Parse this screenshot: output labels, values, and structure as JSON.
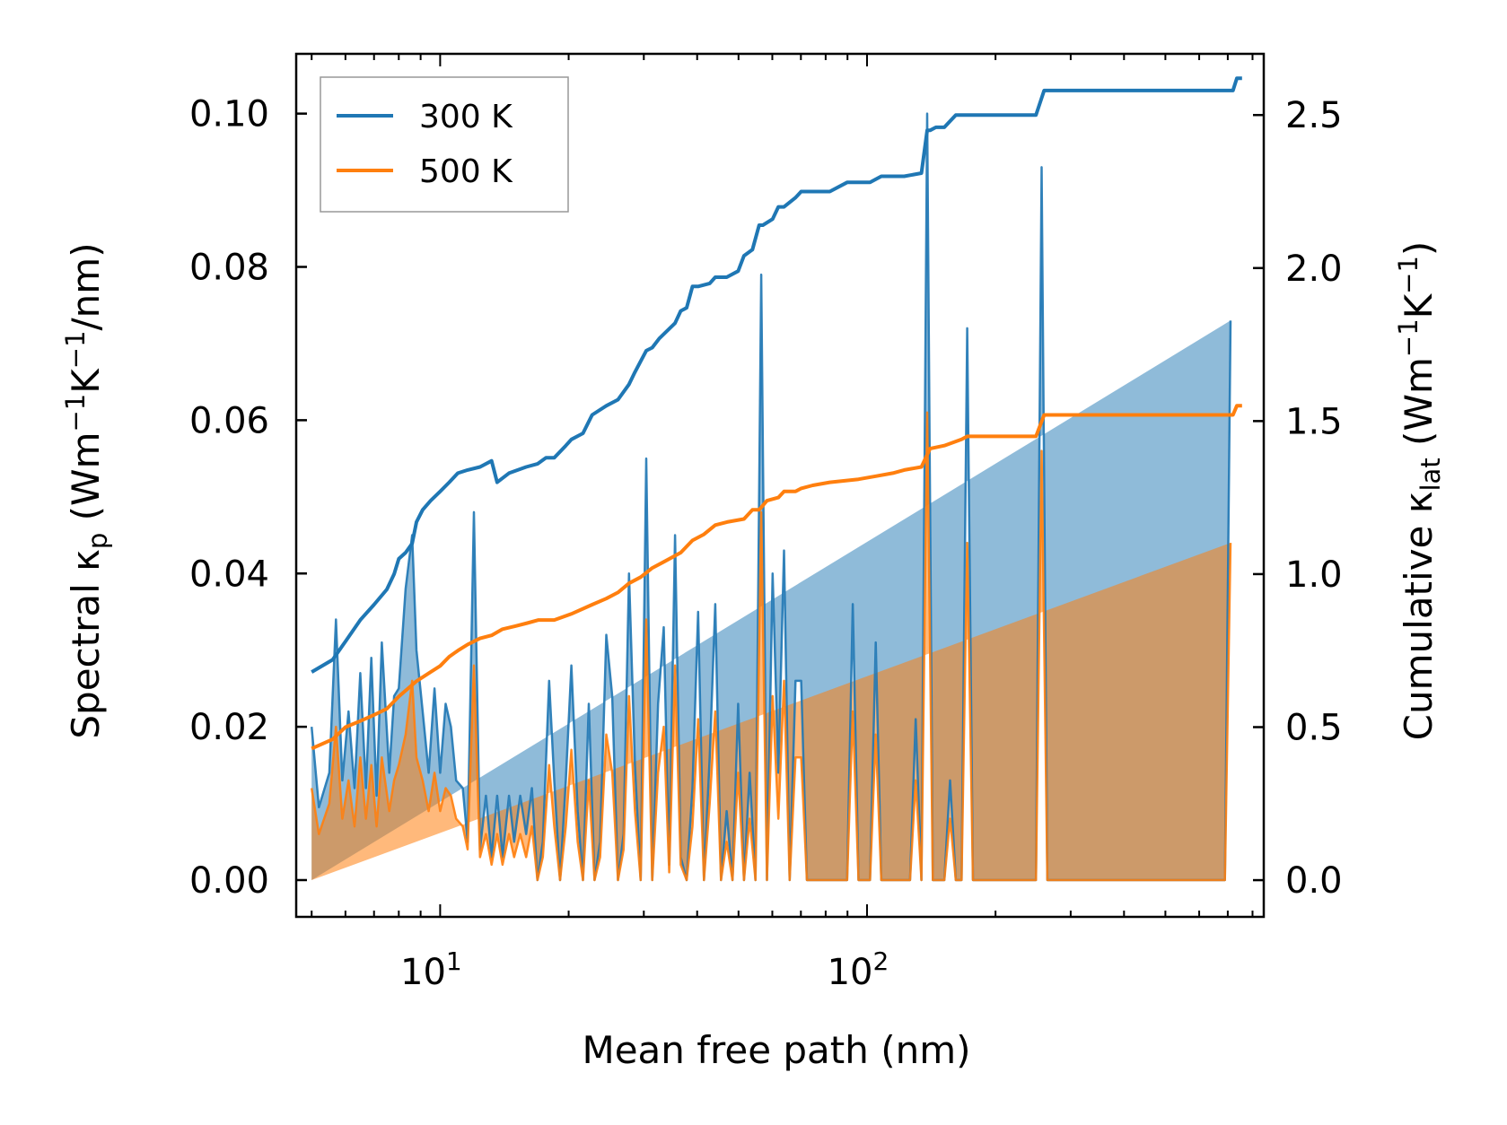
{
  "chart_data": {
    "type": "line",
    "xscale": "log",
    "xlim": [
      4.6,
      850
    ],
    "xlabel": "Mean free path (nm)",
    "xticks": [
      {
        "value": 10,
        "base": "10",
        "exp": "1"
      },
      {
        "value": 100,
        "base": "10",
        "exp": "2"
      }
    ],
    "ylabel": {
      "pre": "Spectral κ",
      "sub": "p",
      "mid": " (Wm",
      "sup1": "−1",
      "mid2": "K",
      "sup2": "−1",
      "post": "/nm)"
    },
    "ylim": [
      -0.0048,
      0.1078
    ],
    "yticks": [
      "0.00",
      "0.02",
      "0.04",
      "0.06",
      "0.08",
      "0.10"
    ],
    "y2label": {
      "pre": "Cumulative κ",
      "sub": "lat",
      "mid": " (Wm",
      "sup1": "−1",
      "mid2": "K",
      "sup2": "−1",
      "post": ")"
    },
    "y2lim": [
      -0.12,
      2.7
    ],
    "y2ticks": [
      "0.0",
      "0.5",
      "1.0",
      "1.5",
      "2.0",
      "2.5"
    ],
    "legend": {
      "position": "top-left",
      "entries": [
        {
          "name": "300 K",
          "color": "#1f77b4"
        },
        {
          "name": "500 K",
          "color": "#ff7f0e"
        }
      ]
    },
    "series": [
      {
        "name": "300 K",
        "color": "#1f77b4",
        "axis": "left",
        "kind": "spectral",
        "x": [
          5.0,
          5.2,
          5.5,
          5.7,
          5.9,
          6.1,
          6.3,
          6.5,
          6.7,
          6.9,
          7.1,
          7.3,
          7.6,
          7.8,
          8.0,
          8.3,
          8.6,
          8.8,
          9.1,
          9.4,
          9.7,
          10.0,
          10.3,
          10.6,
          10.9,
          11.3,
          11.6,
          12.0,
          12.4,
          12.8,
          13.2,
          13.6,
          14.0,
          14.5,
          14.9,
          15.4,
          15.9,
          16.4,
          16.9,
          17.4,
          18.0,
          18.5,
          19.1,
          19.7,
          20.3,
          21.0,
          21.6,
          22.3,
          23.0,
          23.7,
          24.5,
          25.3,
          26.1,
          26.9,
          27.7,
          28.6,
          29.5,
          30.4,
          31.4,
          32.4,
          33.4,
          34.4,
          35.5,
          36.6,
          37.8,
          39.0,
          40.2,
          41.5,
          42.8,
          44.1,
          45.5,
          46.9,
          48.4,
          49.9,
          51.5,
          53.1,
          54.8,
          56.5,
          58.3,
          60.1,
          62.0,
          63.9,
          65.9,
          68.0,
          70.1,
          72.3,
          74.6,
          76.9,
          79.3,
          81.8,
          84.4,
          87.0,
          89.8,
          92.6,
          95.5,
          98.5,
          101.6,
          104.8,
          108.0,
          111.4,
          114.9,
          118.5,
          122.2,
          126.1,
          130.0,
          134.1,
          138.3,
          142.6,
          147.1,
          151.7,
          156.5,
          161.4,
          166.5,
          171.7,
          177.1,
          182.6,
          188.3,
          194.2,
          200.3,
          206.6,
          213.1,
          219.8,
          226.7,
          233.8,
          241.1,
          248.7,
          256.5,
          264.5,
          272.8,
          281.4,
          290.2,
          299.3,
          308.7,
          318.4,
          328.4,
          338.7,
          349.3,
          360.3,
          371.6,
          383.2,
          395.2,
          407.6,
          420.4,
          433.6,
          447.2,
          461.2,
          475.6,
          490.6,
          506.0,
          521.9,
          538.2,
          555.1,
          572.5,
          590.5,
          609.0,
          628.1,
          647.8,
          668.1,
          689.1,
          710.7,
          733.0,
          756.0,
          780.0
        ],
        "spectral": [
          0.02,
          0.0095,
          0.014,
          0.034,
          0.013,
          0.022,
          0.012,
          0.027,
          0.012,
          0.029,
          0.011,
          0.031,
          0.014,
          0.024,
          0.025,
          0.038,
          0.045,
          0.03,
          0.022,
          0.014,
          0.025,
          0.014,
          0.023,
          0.02,
          0.013,
          0.012,
          0.005,
          0.048,
          0.004,
          0.011,
          0.003,
          0.011,
          0.003,
          0.011,
          0.005,
          0.011,
          0.006,
          0.012,
          0.0,
          0.005,
          0.026,
          0.013,
          0.0,
          0.013,
          0.028,
          0.009,
          0.0,
          0.023,
          0.0,
          0.005,
          0.032,
          0.024,
          0.0,
          0.006,
          0.04,
          0.015,
          0.0,
          0.055,
          0.0,
          0.023,
          0.033,
          0.002,
          0.045,
          0.003,
          0.0,
          0.012,
          0.035,
          0.0,
          0.016,
          0.036,
          0.0,
          0.009,
          0.0,
          0.023,
          0.0,
          0.014,
          0.0,
          0.079,
          0.0,
          0.04,
          0.014,
          0.043,
          0.0,
          0.026,
          0.026,
          0.0,
          0.0,
          0.0,
          0.0,
          0.0,
          0.0,
          0.0,
          0.0,
          0.036,
          0.0,
          0.0,
          0.0,
          0.031,
          0.0,
          0.0,
          0.0,
          0.0,
          0.0,
          0.0,
          0.021,
          0.0,
          0.1,
          0.0,
          0.0,
          0.0,
          0.013,
          0.0,
          0.0,
          0.072,
          0.0,
          0.0,
          0.0,
          0.0,
          0.0,
          0.0,
          0.0,
          0.0,
          0.0,
          0.0,
          0.0,
          0.0,
          0.093,
          0.0,
          0.0,
          0.0,
          0.0,
          0.0,
          0.0,
          0.0,
          0.0,
          0.0,
          0.0,
          0.0,
          0.0,
          0.0,
          0.0,
          0.0,
          0.0,
          0.0,
          0.0,
          0.0,
          0.0,
          0.0,
          0.0,
          0.0,
          0.0,
          0.0,
          0.0,
          0.0,
          0.0,
          0.0,
          0.0,
          0.0,
          0.0,
          0.073
        ],
        "cumulative_x": [
          5.0,
          5.6,
          6.0,
          6.5,
          7.0,
          7.5,
          7.8,
          8.0,
          8.3,
          8.6,
          8.8,
          9.1,
          9.5,
          10.0,
          10.5,
          11.0,
          11.6,
          12.4,
          13.2,
          13.6,
          14.5,
          15.9,
          16.9,
          17.7,
          18.5,
          19.7,
          20.3,
          21.6,
          22.7,
          24.5,
          26.1,
          27.7,
          28.6,
          30.4,
          31.4,
          32.6,
          35.5,
          36.6,
          37.8,
          39.0,
          40.2,
          42.8,
          44.1,
          46.9,
          49.9,
          51.5,
          53.9,
          55.9,
          57.0,
          60.1,
          62.0,
          63.9,
          68.0,
          70.1,
          74.6,
          81.8,
          89.8,
          95.5,
          101.6,
          108.0,
          122.2,
          134.1,
          138.3,
          140.5,
          145.0,
          151.7,
          161.4,
          166.5,
          171.7,
          248.7,
          260.0,
          720.0,
          735.0,
          756.0
        ],
        "cumulative": [
          0.68,
          0.72,
          0.78,
          0.85,
          0.9,
          0.95,
          1.0,
          1.05,
          1.07,
          1.1,
          1.17,
          1.21,
          1.24,
          1.27,
          1.3,
          1.33,
          1.34,
          1.35,
          1.37,
          1.3,
          1.33,
          1.35,
          1.36,
          1.38,
          1.38,
          1.42,
          1.44,
          1.46,
          1.52,
          1.55,
          1.57,
          1.62,
          1.66,
          1.73,
          1.74,
          1.77,
          1.82,
          1.86,
          1.87,
          1.94,
          1.94,
          1.95,
          1.97,
          1.97,
          1.99,
          2.04,
          2.06,
          2.14,
          2.14,
          2.16,
          2.2,
          2.2,
          2.23,
          2.25,
          2.25,
          2.25,
          2.28,
          2.28,
          2.28,
          2.3,
          2.3,
          2.31,
          2.45,
          2.45,
          2.46,
          2.46,
          2.5,
          2.5,
          2.5,
          2.5,
          2.58,
          2.58,
          2.62,
          2.62
        ]
      },
      {
        "name": "500 K",
        "color": "#ff7f0e",
        "axis": "left",
        "kind": "spectral",
        "x": [
          5.0,
          5.2,
          5.5,
          5.7,
          5.9,
          6.1,
          6.3,
          6.5,
          6.7,
          6.9,
          7.1,
          7.3,
          7.6,
          7.8,
          8.0,
          8.3,
          8.6,
          8.8,
          9.1,
          9.4,
          9.7,
          10.0,
          10.3,
          10.6,
          10.9,
          11.3,
          11.6,
          12.0,
          12.4,
          12.8,
          13.2,
          13.6,
          14.0,
          14.5,
          14.9,
          15.4,
          15.9,
          16.4,
          16.9,
          17.4,
          18.0,
          18.5,
          19.1,
          19.7,
          20.3,
          21.0,
          21.6,
          22.3,
          23.0,
          23.7,
          24.5,
          25.3,
          26.1,
          26.9,
          27.7,
          28.6,
          29.5,
          30.4,
          31.4,
          32.4,
          33.4,
          34.4,
          35.5,
          36.6,
          37.8,
          39.0,
          40.2,
          41.5,
          42.8,
          44.1,
          45.5,
          46.9,
          48.4,
          49.9,
          51.5,
          53.1,
          54.8,
          56.5,
          58.3,
          60.1,
          62.0,
          63.9,
          65.9,
          68.0,
          70.1,
          72.3,
          74.6,
          76.9,
          79.3,
          81.8,
          84.4,
          87.0,
          89.8,
          92.6,
          95.5,
          98.5,
          101.6,
          104.8,
          108.0,
          111.4,
          114.9,
          118.5,
          122.2,
          126.1,
          130.0,
          134.1,
          138.3,
          142.6,
          147.1,
          151.7,
          156.5,
          161.4,
          166.5,
          171.7,
          177.1,
          182.6,
          188.3,
          194.2,
          200.3,
          206.6,
          213.1,
          219.8,
          226.7,
          233.8,
          241.1,
          248.7,
          256.5,
          264.5,
          272.8,
          281.4,
          290.2,
          299.3,
          308.7,
          318.4,
          328.4,
          338.7,
          349.3,
          360.3,
          371.6,
          383.2,
          395.2,
          407.6,
          420.4,
          433.6,
          447.2,
          461.2,
          475.6,
          490.6,
          506.0,
          521.9,
          538.2,
          555.1,
          572.5,
          590.5,
          609.0,
          628.1,
          647.8,
          668.1,
          689.1,
          710.7,
          733.0,
          756.0,
          780.0
        ],
        "spectral": [
          0.012,
          0.006,
          0.01,
          0.02,
          0.008,
          0.013,
          0.007,
          0.016,
          0.008,
          0.015,
          0.007,
          0.016,
          0.009,
          0.013,
          0.015,
          0.019,
          0.026,
          0.016,
          0.013,
          0.009,
          0.014,
          0.009,
          0.012,
          0.011,
          0.008,
          0.007,
          0.004,
          0.028,
          0.003,
          0.006,
          0.002,
          0.006,
          0.002,
          0.006,
          0.003,
          0.006,
          0.003,
          0.007,
          0.0,
          0.003,
          0.015,
          0.007,
          0.0,
          0.007,
          0.017,
          0.005,
          0.0,
          0.013,
          0.0,
          0.003,
          0.019,
          0.014,
          0.0,
          0.004,
          0.024,
          0.009,
          0.0,
          0.034,
          0.0,
          0.014,
          0.02,
          0.001,
          0.028,
          0.002,
          0.0,
          0.007,
          0.021,
          0.0,
          0.01,
          0.022,
          0.0,
          0.005,
          0.0,
          0.014,
          0.0,
          0.008,
          0.0,
          0.048,
          0.0,
          0.024,
          0.008,
          0.026,
          0.0,
          0.016,
          0.016,
          0.0,
          0.0,
          0.0,
          0.0,
          0.0,
          0.0,
          0.0,
          0.0,
          0.022,
          0.0,
          0.0,
          0.0,
          0.019,
          0.0,
          0.0,
          0.0,
          0.0,
          0.0,
          0.0,
          0.013,
          0.0,
          0.061,
          0.0,
          0.0,
          0.0,
          0.008,
          0.0,
          0.0,
          0.044,
          0.0,
          0.0,
          0.0,
          0.0,
          0.0,
          0.0,
          0.0,
          0.0,
          0.0,
          0.0,
          0.0,
          0.0,
          0.056,
          0.0,
          0.0,
          0.0,
          0.0,
          0.0,
          0.0,
          0.0,
          0.0,
          0.0,
          0.0,
          0.0,
          0.0,
          0.0,
          0.0,
          0.0,
          0.0,
          0.0,
          0.0,
          0.0,
          0.0,
          0.0,
          0.0,
          0.0,
          0.0,
          0.0,
          0.0,
          0.0,
          0.0,
          0.0,
          0.0,
          0.0,
          0.0,
          0.044
        ],
        "cumulative_x": [
          5.0,
          5.6,
          6.0,
          6.5,
          7.0,
          7.5,
          8.0,
          8.8,
          9.5,
          10.0,
          10.5,
          11.0,
          11.6,
          12.4,
          13.2,
          14.0,
          15.0,
          16.0,
          17.0,
          18.5,
          20.3,
          22.7,
          24.5,
          26.1,
          27.7,
          29.5,
          31.4,
          33.4,
          36.6,
          39.0,
          41.5,
          44.1,
          47.0,
          51.5,
          53.9,
          55.9,
          58.3,
          62.0,
          63.9,
          68.0,
          70.1,
          74.6,
          81.8,
          95.5,
          104.8,
          114.9,
          122.2,
          134.1,
          138.3,
          140.5,
          151.7,
          166.5,
          171.7,
          248.7,
          260.0,
          720.0,
          735.0,
          756.0
        ],
        "cumulative": [
          0.43,
          0.46,
          0.5,
          0.52,
          0.54,
          0.56,
          0.6,
          0.65,
          0.68,
          0.7,
          0.73,
          0.75,
          0.77,
          0.79,
          0.8,
          0.82,
          0.83,
          0.84,
          0.85,
          0.85,
          0.87,
          0.9,
          0.92,
          0.94,
          0.97,
          0.99,
          1.02,
          1.04,
          1.07,
          1.11,
          1.13,
          1.16,
          1.17,
          1.18,
          1.21,
          1.21,
          1.24,
          1.25,
          1.27,
          1.27,
          1.28,
          1.29,
          1.3,
          1.31,
          1.32,
          1.33,
          1.34,
          1.35,
          1.39,
          1.41,
          1.42,
          1.44,
          1.45,
          1.45,
          1.52,
          1.52,
          1.55,
          1.55
        ]
      }
    ]
  }
}
